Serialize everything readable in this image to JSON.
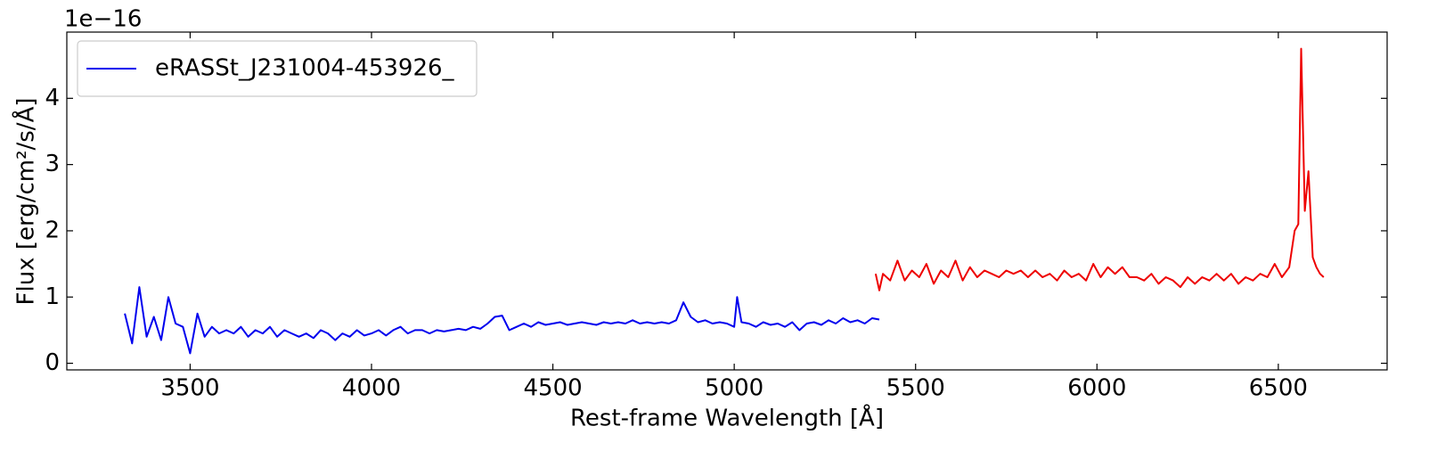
{
  "chart_data": {
    "type": "line",
    "x_label": "Rest-frame Wavelength [Å]",
    "y_label": "Flux [erg/cm²/s/Å]",
    "y_offset_label": "1e−16",
    "xlim": [
      3160,
      6800
    ],
    "xticks": [
      3500,
      4000,
      4500,
      5000,
      5500,
      6000,
      6500
    ],
    "ylim": [
      -0.1,
      5.0
    ],
    "yticks": [
      0,
      1,
      2,
      3,
      4
    ],
    "legend": "upper left",
    "series": [
      {
        "name": "eRASSt_J231004-453926_",
        "color": "#0000ee",
        "x": [
          3320,
          3340,
          3360,
          3380,
          3400,
          3420,
          3440,
          3460,
          3480,
          3500,
          3520,
          3540,
          3560,
          3580,
          3600,
          3620,
          3640,
          3660,
          3680,
          3700,
          3720,
          3740,
          3760,
          3780,
          3800,
          3820,
          3840,
          3860,
          3880,
          3900,
          3920,
          3940,
          3960,
          3980,
          4000,
          4020,
          4040,
          4060,
          4080,
          4100,
          4120,
          4140,
          4160,
          4180,
          4200,
          4220,
          4240,
          4260,
          4280,
          4300,
          4320,
          4340,
          4360,
          4380,
          4400,
          4420,
          4440,
          4460,
          4480,
          4500,
          4520,
          4540,
          4560,
          4580,
          4600,
          4620,
          4640,
          4660,
          4680,
          4700,
          4720,
          4740,
          4760,
          4780,
          4800,
          4820,
          4840,
          4860,
          4880,
          4900,
          4920,
          4940,
          4960,
          4980,
          5000,
          5008,
          5020,
          5040,
          5060,
          5080,
          5100,
          5120,
          5140,
          5160,
          5180,
          5200,
          5220,
          5240,
          5260,
          5280,
          5300,
          5320,
          5340,
          5360,
          5380,
          5400
        ],
        "values": [
          0.75,
          0.3,
          1.15,
          0.4,
          0.7,
          0.35,
          1.0,
          0.6,
          0.55,
          0.15,
          0.75,
          0.4,
          0.55,
          0.45,
          0.5,
          0.45,
          0.55,
          0.4,
          0.5,
          0.45,
          0.55,
          0.4,
          0.5,
          0.45,
          0.4,
          0.45,
          0.38,
          0.5,
          0.45,
          0.35,
          0.45,
          0.4,
          0.5,
          0.42,
          0.45,
          0.5,
          0.42,
          0.5,
          0.55,
          0.45,
          0.5,
          0.5,
          0.45,
          0.5,
          0.48,
          0.5,
          0.52,
          0.5,
          0.55,
          0.52,
          0.6,
          0.7,
          0.72,
          0.5,
          0.55,
          0.6,
          0.55,
          0.62,
          0.58,
          0.6,
          0.62,
          0.58,
          0.6,
          0.62,
          0.6,
          0.58,
          0.62,
          0.6,
          0.62,
          0.6,
          0.65,
          0.6,
          0.62,
          0.6,
          0.62,
          0.6,
          0.65,
          0.92,
          0.7,
          0.62,
          0.65,
          0.6,
          0.62,
          0.6,
          0.55,
          1.0,
          0.62,
          0.6,
          0.55,
          0.62,
          0.58,
          0.6,
          0.55,
          0.62,
          0.5,
          0.6,
          0.62,
          0.58,
          0.65,
          0.6,
          0.68,
          0.62,
          0.65,
          0.6,
          0.68,
          0.66
        ]
      },
      {
        "color": "#ee0000",
        "x": [
          5390,
          5400,
          5410,
          5430,
          5450,
          5470,
          5490,
          5510,
          5530,
          5550,
          5570,
          5590,
          5610,
          5630,
          5650,
          5670,
          5690,
          5710,
          5730,
          5750,
          5770,
          5790,
          5810,
          5830,
          5850,
          5870,
          5890,
          5910,
          5930,
          5950,
          5970,
          5990,
          6010,
          6030,
          6050,
          6070,
          6090,
          6110,
          6130,
          6150,
          6170,
          6190,
          6210,
          6230,
          6250,
          6270,
          6290,
          6310,
          6330,
          6350,
          6370,
          6390,
          6410,
          6430,
          6450,
          6470,
          6490,
          6510,
          6530,
          6545,
          6555,
          6563,
          6573,
          6583,
          6595,
          6605,
          6615,
          6625
        ],
        "values": [
          1.35,
          1.1,
          1.35,
          1.25,
          1.55,
          1.25,
          1.4,
          1.3,
          1.5,
          1.2,
          1.4,
          1.3,
          1.55,
          1.25,
          1.45,
          1.3,
          1.4,
          1.35,
          1.3,
          1.4,
          1.35,
          1.4,
          1.3,
          1.4,
          1.3,
          1.35,
          1.25,
          1.4,
          1.3,
          1.35,
          1.25,
          1.5,
          1.3,
          1.45,
          1.35,
          1.45,
          1.3,
          1.3,
          1.25,
          1.35,
          1.2,
          1.3,
          1.25,
          1.15,
          1.3,
          1.2,
          1.3,
          1.25,
          1.35,
          1.25,
          1.35,
          1.2,
          1.3,
          1.25,
          1.35,
          1.3,
          1.5,
          1.3,
          1.45,
          2.0,
          2.1,
          4.75,
          2.3,
          2.9,
          1.6,
          1.45,
          1.35,
          1.3
        ]
      }
    ]
  }
}
